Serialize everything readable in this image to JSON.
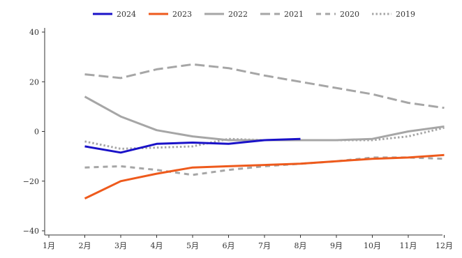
{
  "chart_data": {
    "type": "line",
    "title": "",
    "xlabel": "",
    "ylabel": "",
    "ylim": [
      -40,
      40
    ],
    "yticks": [
      -40,
      -20,
      0,
      20,
      40
    ],
    "ytick_labels": [
      "−40",
      "−20",
      "0",
      "20",
      "40"
    ],
    "categories": [
      "1月",
      "2月",
      "3月",
      "4月",
      "5月",
      "6月",
      "7月",
      "8月",
      "9月",
      "10月",
      "11月",
      "12月"
    ],
    "grid": false,
    "legend_position": "top",
    "series": [
      {
        "name": "2024",
        "color": "#1a12c8",
        "dash": "solid",
        "values": [
          null,
          -6,
          -8.5,
          -5,
          -4.5,
          -5,
          -3.5,
          -3,
          null,
          null,
          null,
          null
        ]
      },
      {
        "name": "2023",
        "color": "#ee5a1c",
        "dash": "solid",
        "values": [
          null,
          -27,
          -20,
          -17,
          -14.5,
          -14,
          -13.5,
          -13,
          -12,
          -11,
          -10.5,
          -9.5
        ]
      },
      {
        "name": "2022",
        "color": "#a6a6a6",
        "dash": "solid",
        "values": [
          null,
          14,
          6,
          0.5,
          -2,
          -3.5,
          -3.5,
          -3.5,
          -3.5,
          -3,
          0,
          2
        ]
      },
      {
        "name": "2021",
        "color": "#a6a6a6",
        "dash": "long-dash",
        "values": [
          null,
          23,
          21.5,
          25,
          27,
          25.5,
          22.5,
          20,
          17.5,
          15,
          11.5,
          9.5
        ]
      },
      {
        "name": "2020",
        "color": "#a6a6a6",
        "dash": "short-dash",
        "values": [
          null,
          -14.5,
          -14,
          -15.5,
          -17.5,
          -15.5,
          -14,
          -13,
          -12,
          -10.5,
          -10.5,
          -11
        ]
      },
      {
        "name": "2019",
        "color": "#a6a6a6",
        "dash": "dotted",
        "values": [
          null,
          -4,
          -7,
          -6.5,
          -6,
          -3,
          -3.5,
          -3.5,
          -3.5,
          -3.5,
          -2,
          1.5
        ]
      }
    ]
  }
}
